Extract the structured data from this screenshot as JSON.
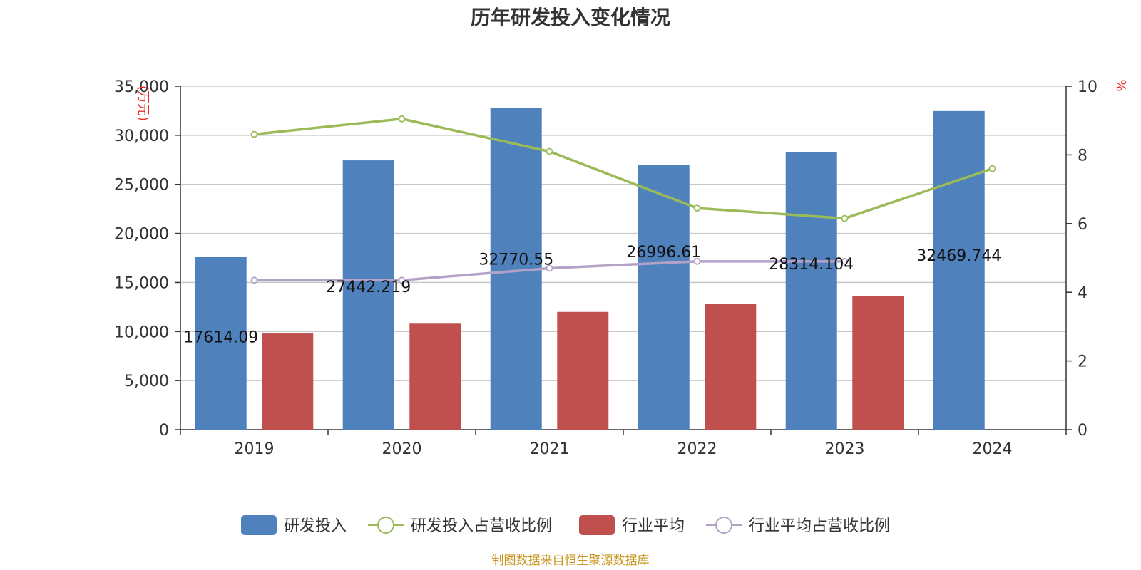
{
  "chart_data": {
    "type": "bar",
    "title": "历年研发投入变化情况",
    "categories": [
      "2019",
      "2020",
      "2021",
      "2022",
      "2023",
      "2024"
    ],
    "left_axis": {
      "unit": "(万元)",
      "ylim": [
        0,
        35000
      ],
      "ticks": [
        "0",
        "5,000",
        "10,000",
        "15,000",
        "20,000",
        "25,000",
        "30,000",
        "35,000"
      ]
    },
    "right_axis": {
      "unit": "%",
      "ylim": [
        0,
        10
      ],
      "ticks": [
        "0",
        "2",
        "4",
        "6",
        "8",
        "10"
      ]
    },
    "series": [
      {
        "name": "研发投入",
        "kind": "bar",
        "axis": "left",
        "color": "#4f81bd",
        "values": [
          17614.09,
          27442.219,
          32770.55,
          26996.61,
          28314.104,
          32469.744
        ],
        "labels": [
          "17614.09",
          "27442.219",
          "32770.55",
          "26996.61",
          "28314.104",
          "32469.744"
        ]
      },
      {
        "name": "研发投入占营收比例",
        "kind": "line",
        "axis": "right",
        "color": "#9bbb59",
        "values": [
          8.6,
          9.05,
          8.1,
          6.45,
          6.15,
          7.6
        ]
      },
      {
        "name": "行业平均",
        "kind": "bar",
        "axis": "left",
        "color": "#c0504d",
        "values": [
          9800,
          10800,
          12000,
          12800,
          13600,
          null
        ]
      },
      {
        "name": "行业平均占营收比例",
        "kind": "line",
        "axis": "right",
        "color": "#b3a2c7",
        "values": [
          4.35,
          4.35,
          4.7,
          4.9,
          4.9,
          null
        ]
      }
    ],
    "source": "制图数据来自恒生聚源数据库"
  }
}
